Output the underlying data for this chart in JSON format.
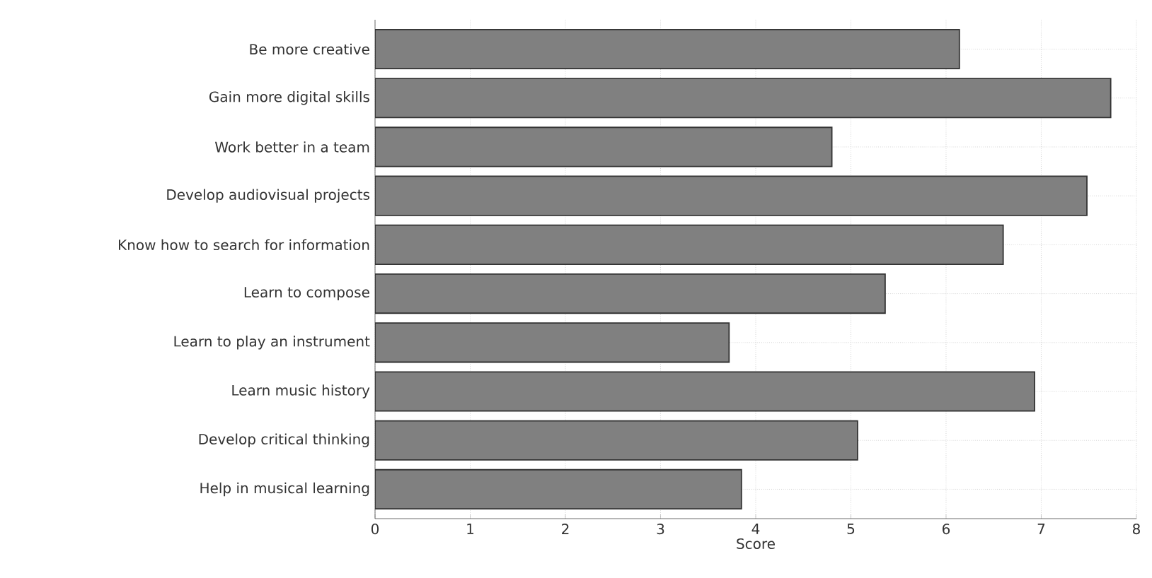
{
  "chart_data": {
    "type": "bar",
    "orientation": "horizontal",
    "xlabel": "Score",
    "categories": [
      "Be more creative",
      "Gain more digital skills",
      "Work better in a team",
      "Develop audiovisual projects",
      "Know how to search for information",
      "Learn to compose",
      "Learn to play an instrument",
      "Learn music history",
      "Develop critical thinking",
      "Help in musical learning"
    ],
    "values": [
      6.14,
      7.73,
      4.8,
      7.48,
      6.6,
      5.36,
      3.72,
      6.93,
      5.07,
      3.85
    ],
    "color": "#808080",
    "xlim": [
      0,
      8
    ],
    "xticks": [
      0,
      1,
      2,
      3,
      4,
      5,
      6,
      7,
      8
    ],
    "grid": true
  }
}
